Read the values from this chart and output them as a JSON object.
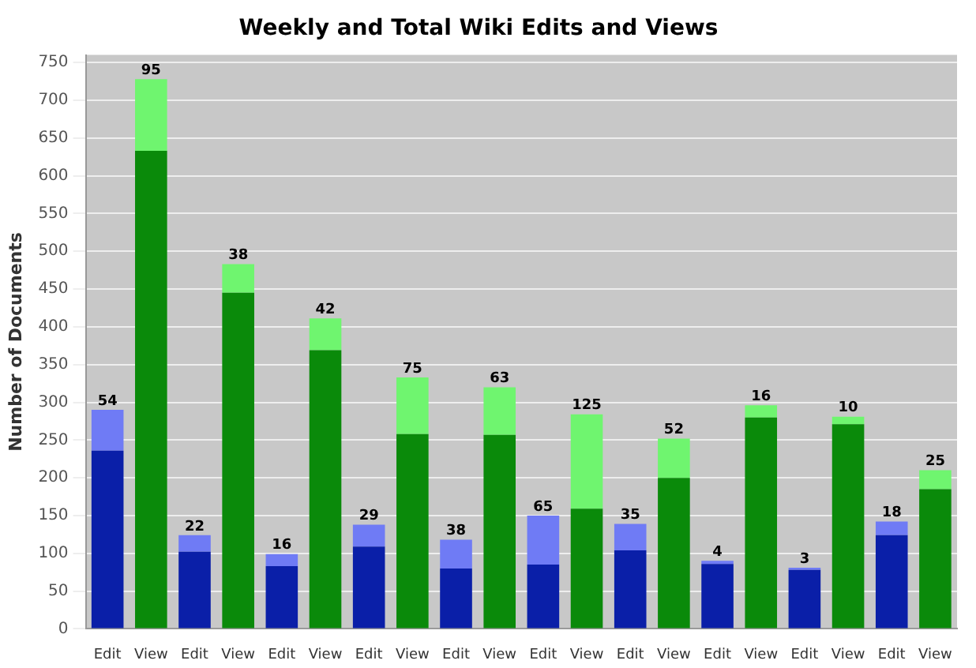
{
  "chart_data": {
    "type": "bar",
    "title": "Weekly and Total Wiki Edits and Views",
    "ylabel": "Number of Documents",
    "categories": [
      "Edit",
      "View",
      "Edit",
      "View",
      "Edit",
      "View",
      "Edit",
      "View",
      "Edit",
      "View",
      "Edit",
      "View",
      "Edit",
      "View",
      "Edit",
      "View",
      "Edit",
      "View",
      "Edit",
      "View"
    ],
    "stacked": true,
    "series": [
      {
        "colors": [
          "#0a1fa8",
          "#0a8a0a",
          "#0a1fa8",
          "#0a8a0a",
          "#0a1fa8",
          "#0a8a0a",
          "#0a1fa8",
          "#0a8a0a",
          "#0a1fa8",
          "#0a8a0a",
          "#0a1fa8",
          "#0a8a0a",
          "#0a1fa8",
          "#0a8a0a",
          "#0a1fa8",
          "#0a8a0a",
          "#0a1fa8",
          "#0a8a0a",
          "#0a1fa8",
          "#0a8a0a"
        ],
        "values": [
          236,
          633,
          102,
          445,
          83,
          369,
          109,
          258,
          80,
          257,
          85,
          159,
          104,
          200,
          86,
          280,
          78,
          271,
          124,
          185
        ]
      },
      {
        "colors": [
          "#6f7bf5",
          "#6ff56f",
          "#6f7bf5",
          "#6ff56f",
          "#6f7bf5",
          "#6ff56f",
          "#6f7bf5",
          "#6ff56f",
          "#6f7bf5",
          "#6ff56f",
          "#6f7bf5",
          "#6ff56f",
          "#6f7bf5",
          "#6ff56f",
          "#6f7bf5",
          "#6ff56f",
          "#6f7bf5",
          "#6ff56f",
          "#6f7bf5",
          "#6ff56f"
        ],
        "values": [
          54,
          95,
          22,
          38,
          16,
          42,
          29,
          75,
          38,
          63,
          65,
          125,
          35,
          52,
          4,
          16,
          3,
          10,
          18,
          25
        ],
        "value_labels": [
          "54",
          "95",
          "22",
          "38",
          "16",
          "42",
          "29",
          "75",
          "38",
          "63",
          "65",
          "125",
          "35",
          "52",
          "4",
          "16",
          "3",
          "10",
          "18",
          "25"
        ]
      }
    ],
    "ylim": [
      0,
      760
    ],
    "yticks": [
      0,
      50,
      100,
      150,
      200,
      250,
      300,
      350,
      400,
      450,
      500,
      550,
      600,
      650,
      700,
      750
    ],
    "grid": "y",
    "legend": false
  }
}
